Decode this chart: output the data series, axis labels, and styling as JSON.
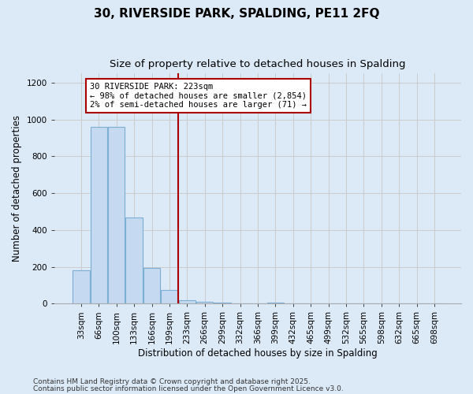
{
  "title_line1": "30, RIVERSIDE PARK, SPALDING, PE11 2FQ",
  "title_line2": "Size of property relative to detached houses in Spalding",
  "xlabel": "Distribution of detached houses by size in Spalding",
  "ylabel": "Number of detached properties",
  "categories": [
    "33sqm",
    "66sqm",
    "100sqm",
    "133sqm",
    "166sqm",
    "199sqm",
    "233sqm",
    "266sqm",
    "299sqm",
    "332sqm",
    "366sqm",
    "399sqm",
    "432sqm",
    "465sqm",
    "499sqm",
    "532sqm",
    "565sqm",
    "598sqm",
    "632sqm",
    "665sqm",
    "698sqm"
  ],
  "values": [
    180,
    960,
    960,
    470,
    195,
    75,
    20,
    10,
    4,
    0,
    0,
    4,
    0,
    0,
    0,
    0,
    0,
    0,
    0,
    0,
    0
  ],
  "bar_color": "#c5d9f0",
  "bar_edge_color": "#7bafd4",
  "subject_bin_index": 6,
  "subject_line_color": "#aa0000",
  "annotation_text": "30 RIVERSIDE PARK: 223sqm\n← 98% of detached houses are smaller (2,854)\n2% of semi-detached houses are larger (71) →",
  "annotation_box_color": "#ffffff",
  "annotation_box_edge_color": "#aa0000",
  "ylim": [
    0,
    1250
  ],
  "yticks": [
    0,
    200,
    400,
    600,
    800,
    1000,
    1200
  ],
  "grid_color": "#cccccc",
  "plot_bg_color": "#dce9f7",
  "fig_bg_color": "#dce9f7",
  "footnote1": "Contains HM Land Registry data © Crown copyright and database right 2025.",
  "footnote2": "Contains public sector information licensed under the Open Government Licence v3.0.",
  "title_fontsize": 11,
  "subtitle_fontsize": 9.5,
  "axis_label_fontsize": 8.5,
  "tick_fontsize": 7.5,
  "annotation_fontsize": 7.5,
  "footnote_fontsize": 6.5
}
